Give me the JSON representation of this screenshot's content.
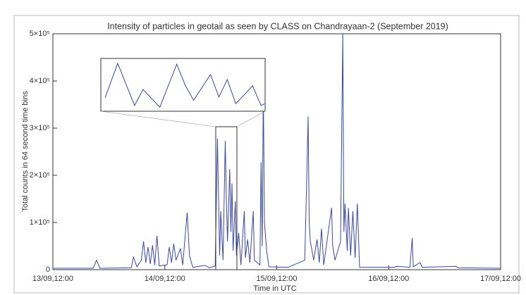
{
  "chart_data": {
    "type": "line",
    "title": "Intensity of particles in geotail as seen by CLASS on Chandrayaan-2 (September 2019)",
    "x_label": "Time in UTC",
    "y_label": "Total counts in 64 second time bins",
    "xlim": [
      13.5,
      17.5
    ],
    "xticks": [
      {
        "value": 13.5,
        "label": "13/09,12:00"
      },
      {
        "value": 14.5,
        "label": "14/09,12:00"
      },
      {
        "value": 15.5,
        "label": "15/09,12:00"
      },
      {
        "value": 16.5,
        "label": "16/09,12:00"
      },
      {
        "value": 17.5,
        "label": "17/09,12:00"
      }
    ],
    "ylim": [
      0,
      500000
    ],
    "yticks": [
      0,
      {
        "value": 100000,
        "label": "1×10⁵"
      },
      {
        "value": 200000,
        "label": "2×10⁵"
      },
      {
        "value": 300000,
        "label": "3×10⁵"
      },
      {
        "value": 400000,
        "label": "4×10⁵"
      },
      {
        "value": 500000,
        "label": "5×10⁵"
      }
    ],
    "series": [
      {
        "color": "#3a46a8",
        "x": [
          13.5,
          13.86,
          13.89,
          13.92,
          14.2,
          14.22,
          14.25,
          14.29,
          14.31,
          14.33,
          14.35,
          14.37,
          14.39,
          14.41,
          14.43,
          14.45,
          14.52,
          14.54,
          14.56,
          14.58,
          14.6,
          14.64,
          14.66,
          14.7,
          14.72,
          14.75,
          14.86,
          14.9,
          14.95,
          14.97,
          14.99,
          15.0,
          15.02,
          15.04,
          15.05,
          15.06,
          15.08,
          15.09,
          15.1,
          15.11,
          15.13,
          15.14,
          15.16,
          15.18,
          15.21,
          15.22,
          15.24,
          15.26,
          15.29,
          15.3,
          15.35,
          15.36,
          15.37,
          15.38,
          15.39,
          15.41,
          15.43,
          15.6,
          15.75,
          15.77,
          15.78,
          15.79,
          15.8,
          15.83,
          15.86,
          15.88,
          15.9,
          15.92,
          15.99,
          16.0,
          16.02,
          16.07,
          16.09,
          16.1,
          16.11,
          16.13,
          16.14,
          16.16,
          16.18,
          16.2,
          16.22,
          16.24,
          16.55,
          16.57,
          16.69,
          16.71,
          16.72,
          16.78,
          16.8,
          17.1,
          17.12,
          17.5
        ],
        "values": [
          3000,
          3000,
          20000,
          3000,
          4000,
          27000,
          6000,
          20000,
          60000,
          15000,
          48000,
          12000,
          52000,
          10000,
          72000,
          8000,
          10000,
          48000,
          15000,
          55000,
          20000,
          45000,
          10000,
          121000,
          30000,
          5000,
          9000,
          4000,
          8000,
          278000,
          30000,
          124000,
          20000,
          273000,
          150000,
          60000,
          213000,
          80000,
          183000,
          40000,
          145000,
          30000,
          78000,
          10000,
          124000,
          25000,
          64000,
          15000,
          124000,
          20000,
          10000,
          228000,
          50000,
          385000,
          100000,
          40000,
          6000,
          5000,
          20000,
          213000,
          325000,
          100000,
          60000,
          20000,
          64000,
          15000,
          87000,
          10000,
          131000,
          50000,
          20000,
          60000,
          500000,
          80000,
          140000,
          40000,
          131000,
          30000,
          124000,
          25000,
          140000,
          5000,
          5000,
          7000,
          5000,
          67000,
          6000,
          15000,
          5000,
          7000,
          4000,
          3000
        ]
      }
    ],
    "inset": {
      "xlim": [
        14.955,
        15.144
      ],
      "ylim": [
        0,
        303000
      ]
    }
  }
}
